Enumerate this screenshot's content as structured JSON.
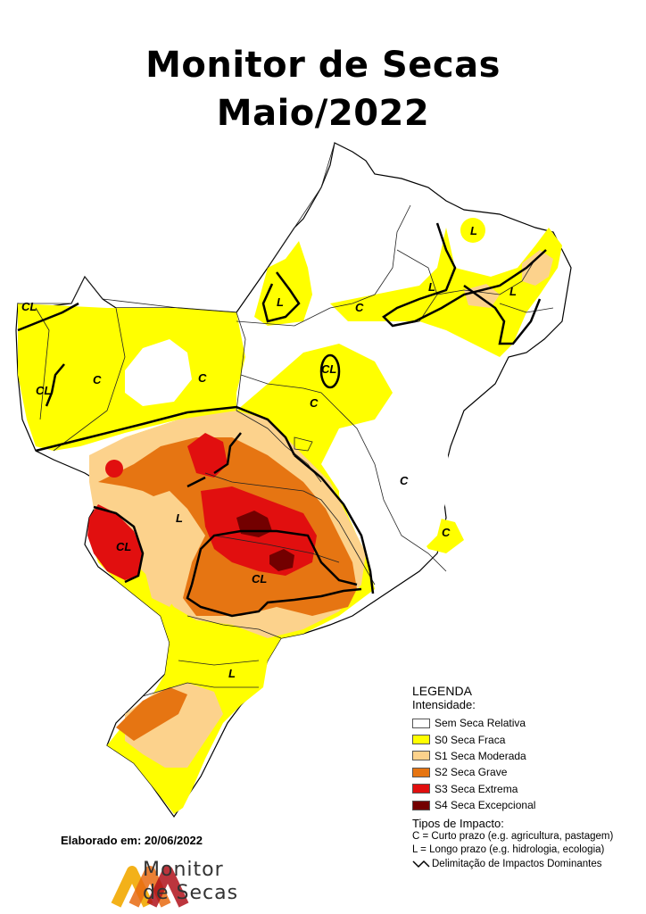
{
  "title_line1": "Monitor de Secas",
  "title_line2": "Maio/2022",
  "map_labels": {
    "cl_acre": "CL",
    "cl_acre_south": "CL",
    "c_amazonas": "C",
    "c_para": "C",
    "l_roraima_pa": "L",
    "c_maranhao": "C",
    "l_north_ne": "L",
    "l_ne_central": "L",
    "l_ne_east": "L",
    "cl_tocantins": "CL",
    "c_goias": "C",
    "c_bahia": "C",
    "c_mg": "C",
    "l_ms": "L",
    "cl_ms_west": "CL",
    "cl_sp": "CL",
    "l_sc": "L"
  },
  "legend": {
    "title": "LEGENDA",
    "intensity_title": "Intensidade:",
    "items": [
      {
        "label": "Sem Seca Relativa",
        "color": "#ffffff"
      },
      {
        "label": "S0 Seca Fraca",
        "color": "#ffff00"
      },
      {
        "label": "S1 Seca Moderada",
        "color": "#fcd28c"
      },
      {
        "label": "S2 Seca Grave",
        "color": "#e67512"
      },
      {
        "label": "S3 Seca Extrema",
        "color": "#e10f0f"
      },
      {
        "label": "S4 Seca Excepcional",
        "color": "#730000"
      }
    ],
    "impact_title": "Tipos de Impacto:",
    "impact_c": "C = Curto prazo (e.g. agricultura, pastagem)",
    "impact_l": "L = Longo prazo (e.g. hidrologia, ecologia)",
    "delimitation": "Delimitação de Impactos Dominantes"
  },
  "elaborado": "Elaborado em: 20/06/2022",
  "logo": {
    "line1": "Monitor",
    "line2": "de Secas"
  }
}
